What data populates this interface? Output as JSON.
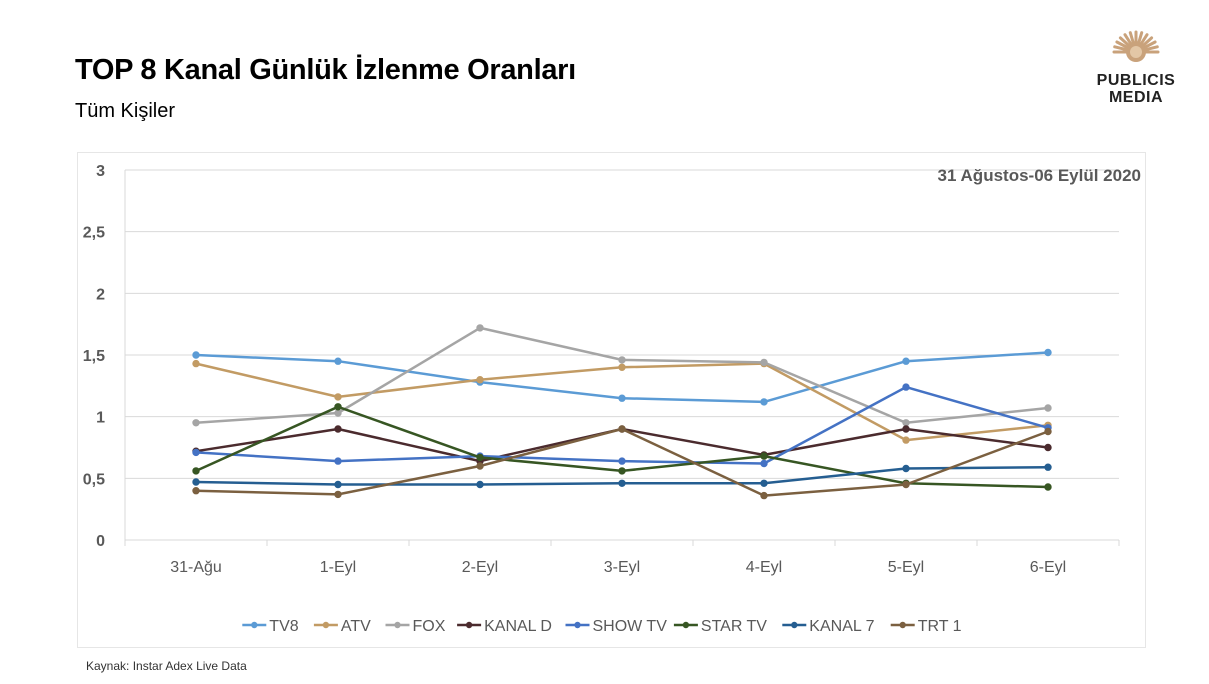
{
  "header": {
    "title": "TOP 8 Kanal Günlük İzlenme Oranları",
    "subtitle": "Tüm Kişiler"
  },
  "logo": {
    "line1": "PUBLICIS",
    "line2": "MEDIA",
    "icon": "publicis-lion-icon",
    "color": "#C9A27B"
  },
  "footer": {
    "source": "Kaynak: Instar  Adex Live Data"
  },
  "chart_data": {
    "type": "line",
    "annotation": "31 Ağustos-06 Eylül 2020",
    "categories": [
      "31-Ağu",
      "1-Eyl",
      "2-Eyl",
      "3-Eyl",
      "4-Eyl",
      "5-Eyl",
      "6-Eyl"
    ],
    "ylim": [
      0,
      3
    ],
    "yticks": [
      0,
      0.5,
      1,
      1.5,
      2,
      2.5,
      3
    ],
    "ytick_labels": [
      "0",
      "0,5",
      "1",
      "1,5",
      "2",
      "2,5",
      "3"
    ],
    "grid": true,
    "legend_position": "bottom",
    "series": [
      {
        "name": "TV8",
        "color": "#5B9BD5",
        "values": [
          1.5,
          1.45,
          1.28,
          1.15,
          1.12,
          1.45,
          1.52
        ]
      },
      {
        "name": "ATV",
        "color": "#C29B64",
        "values": [
          1.43,
          1.16,
          1.3,
          1.4,
          1.43,
          0.81,
          0.93
        ]
      },
      {
        "name": "FOX",
        "color": "#A5A5A5",
        "values": [
          0.95,
          1.03,
          1.72,
          1.46,
          1.44,
          0.95,
          1.07
        ]
      },
      {
        "name": "KANAL D",
        "color": "#4B2B2E",
        "values": [
          0.72,
          0.9,
          0.64,
          0.9,
          0.69,
          0.9,
          0.75
        ]
      },
      {
        "name": "SHOW TV",
        "color": "#4472C4",
        "values": [
          0.71,
          0.64,
          0.68,
          0.64,
          0.62,
          1.24,
          0.91
        ]
      },
      {
        "name": "STAR TV",
        "color": "#375623",
        "values": [
          0.56,
          1.08,
          0.67,
          0.56,
          0.68,
          0.46,
          0.43
        ]
      },
      {
        "name": "KANAL 7",
        "color": "#255E91",
        "values": [
          0.47,
          0.45,
          0.45,
          0.46,
          0.46,
          0.58,
          0.59
        ]
      },
      {
        "name": "TRT 1",
        "color": "#7B6040",
        "values": [
          0.4,
          0.37,
          0.6,
          0.9,
          0.36,
          0.45,
          0.88
        ]
      }
    ]
  }
}
